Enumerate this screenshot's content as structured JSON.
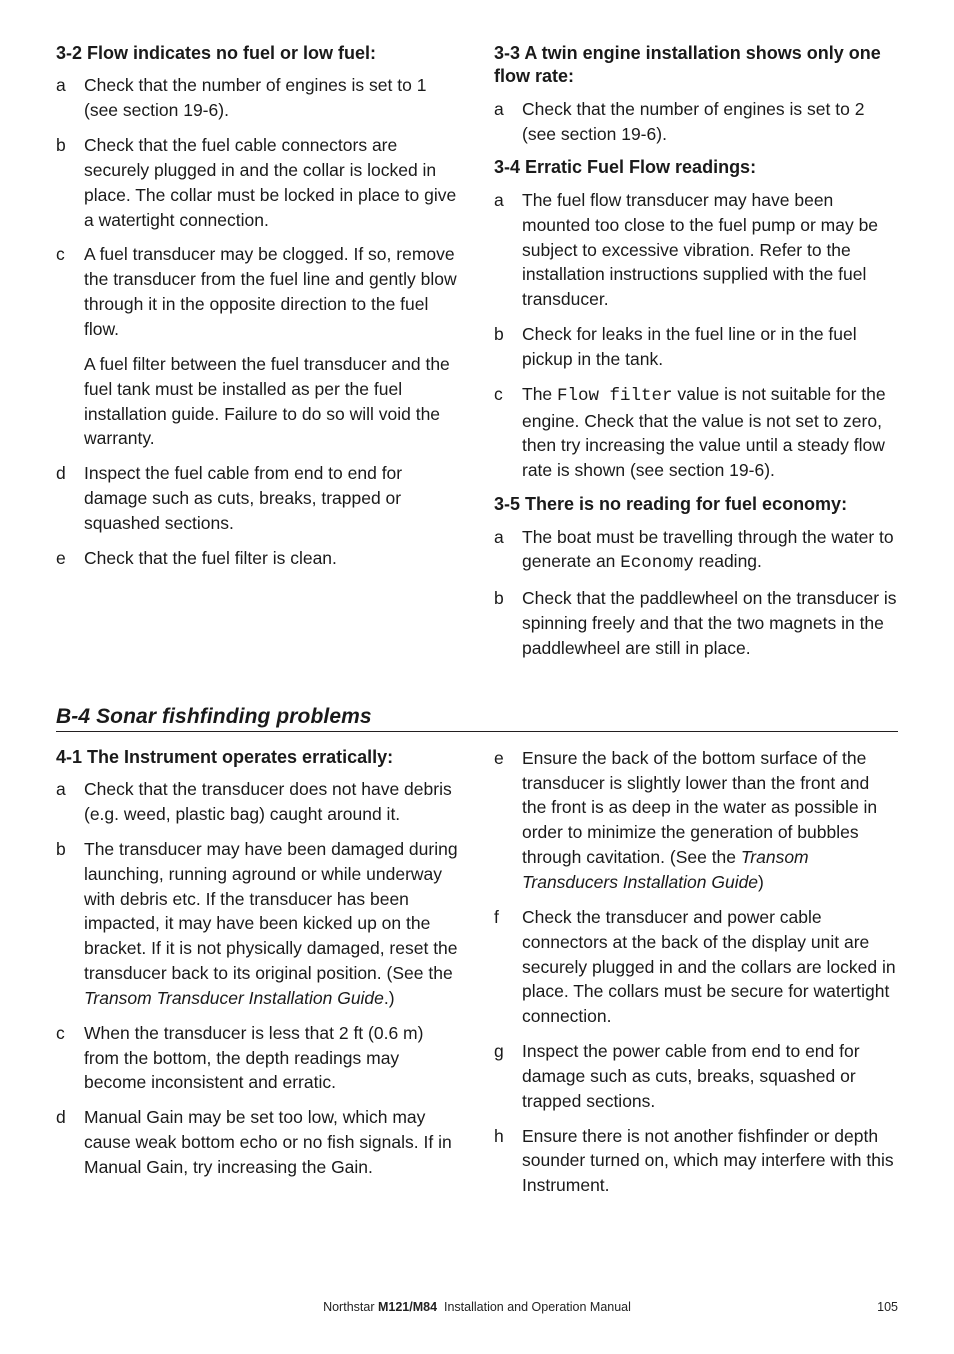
{
  "top": {
    "left": {
      "heading32": "3-2 Flow indicates no fuel or low fuel:",
      "items32": [
        {
          "m": "a",
          "paras": [
            "Check that the number of engines is set to 1 (see section 19-6)."
          ]
        },
        {
          "m": "b",
          "paras": [
            "Check that the fuel cable connectors are securely plugged in and the collar is locked in place. The collar must be locked in place to give a watertight connection."
          ]
        },
        {
          "m": "c",
          "paras": [
            "A fuel transducer may be clogged. If so, remove the transducer from the fuel line and gently blow through it in the opposite direction to the fuel flow.",
            "A fuel filter between the fuel transducer and the fuel tank must be installed as per the fuel installation guide. Failure to do so will void the warranty."
          ]
        },
        {
          "m": "d",
          "paras": [
            "Inspect the fuel cable from end to end for damage such as cuts, breaks, trapped or squashed sections."
          ]
        },
        {
          "m": "e",
          "paras": [
            "Check that the fuel filter is clean."
          ]
        }
      ]
    },
    "right": {
      "heading33": "3-3 A twin engine installation shows only one flow rate:",
      "items33": [
        {
          "m": "a",
          "paras": [
            "Check that the number of engines is set to 2 (see section 19-6)."
          ]
        }
      ],
      "heading34": "3-4 Erratic Fuel Flow readings:",
      "items34": [
        {
          "m": "a",
          "paras": [
            "The fuel flow transducer may have been mounted too close to the fuel pump or may be subject to excessive vibration. Refer to the installation instructions supplied with the fuel transducer."
          ]
        },
        {
          "m": "b",
          "paras": [
            "Check for leaks in the fuel line or in the fuel pickup in the tank."
          ]
        },
        {
          "m": "c",
          "html": "The <span class=\"mono\">Flow filter</span> value is not suitable for the engine. Check that the value is not set to zero, then try increasing the value until a steady flow rate is shown (see section 19-6)."
        }
      ],
      "heading35": "3-5 There is no reading for fuel economy:",
      "items35": [
        {
          "m": "a",
          "html": "The boat must be travelling through the water to generate an <span class=\"mono\">Economy</span> reading."
        },
        {
          "m": "b",
          "paras": [
            "Check that the paddlewheel on the transducer is spinning freely and that the two magnets in the paddlewheel are still in place."
          ]
        }
      ]
    }
  },
  "sectionB4": "B-4 Sonar fishfinding problems",
  "bottom": {
    "left": {
      "heading41": "4-1 The Instrument operates erratically:",
      "items41": [
        {
          "m": "a",
          "paras": [
            "Check that the transducer does not have debris (e.g. weed, plastic bag) caught around it."
          ]
        },
        {
          "m": "b",
          "html": "The transducer may have been damaged during launching, running aground or while underway with debris etc. If the transducer has been impacted, it may have been kicked up on the bracket. If it is not physically damaged, reset the transducer back to its original position. (See the <span class=\"italic\">Transom Transducer Installation Guide</span>.)"
        },
        {
          "m": "c",
          "paras": [
            "When the transducer is less that 2 ft (0.6 m) from the bottom, the depth readings may become inconsistent and erratic."
          ]
        },
        {
          "m": "d",
          "paras": [
            "Manual Gain may be set too low, which may cause weak bottom echo or no fish signals. If in Manual Gain, try increasing the Gain."
          ]
        }
      ]
    },
    "right": {
      "items41b": [
        {
          "m": "e",
          "html": "Ensure the back of the bottom surface of the transducer is slightly lower than the front and the front is as deep in the water as possible in order to minimize the generation of bubbles through cavitation. (See the <span class=\"italic\">Transom Transducers Installation Guide</span>)"
        },
        {
          "m": "f",
          "paras": [
            "Check the transducer and power cable connectors at the back of the display unit are securely plugged in and the collars are locked in place. The collars must be secure for watertight connection."
          ]
        },
        {
          "m": "g",
          "paras": [
            "Inspect the power cable from end to end for damage such as cuts, breaks, squashed or trapped sections."
          ]
        },
        {
          "m": "h",
          "paras": [
            "Ensure there is not another fishfinder or depth sounder turned on, which may interfere with this Instrument."
          ]
        }
      ]
    }
  },
  "footer": {
    "brand": "Northstar",
    "model": "M121/M84",
    "suffix": "Installation and Operation Manual",
    "page": "105"
  }
}
